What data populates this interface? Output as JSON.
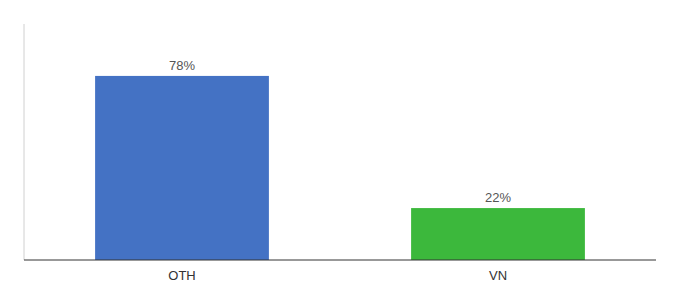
{
  "chart_data": {
    "type": "bar",
    "categories": [
      "OTH",
      "VN"
    ],
    "values": [
      78,
      22
    ],
    "value_labels": [
      "78%",
      "22%"
    ],
    "colors": [
      "#4472C4",
      "#3CB83C"
    ],
    "ylim": [
      0,
      100
    ],
    "data_labels": true,
    "tick_labels": "x",
    "grid": false
  }
}
